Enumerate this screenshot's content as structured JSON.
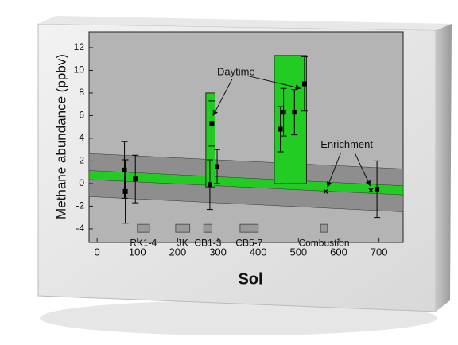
{
  "chart_data": {
    "type": "scatter",
    "x_label": "Sol",
    "y_label": "Methane abundance (ppbv)",
    "xlim": [
      -20,
      760
    ],
    "ylim": [
      -5.2,
      13.4
    ],
    "xticks": [
      0,
      100,
      200,
      300,
      400,
      500,
      600,
      700
    ],
    "yticks": [
      -4,
      -2,
      0,
      2,
      4,
      6,
      8,
      10,
      12
    ],
    "series": [
      {
        "color": "#000000",
        "x": [
          68,
          70,
          95,
          280,
          285,
          298,
          455,
          463,
          490,
          515,
          568,
          680,
          695
        ],
        "values": [
          1.2,
          -0.7,
          0.4,
          -0.1,
          5.3,
          1.5,
          4.8,
          6.3,
          6.3,
          8.8,
          -0.7,
          -0.6,
          -0.5
        ],
        "errors": [
          2.5,
          2.8,
          2.1,
          2.2,
          2.0,
          1.5,
          2.0,
          2.1,
          2.0,
          2.4,
          null,
          null,
          2.5
        ]
      }
    ],
    "background": {
      "x": [
        -20,
        760
      ],
      "values": [
        0.75,
        -0.6
      ],
      "band": 0.4,
      "spread": 1.9,
      "color": "#22cc22",
      "spread_color": "#8e8e8e"
    },
    "spikes": [
      {
        "x": [
          270,
          293
        ],
        "y": [
          -0.3,
          8
        ]
      },
      {
        "x": [
          440,
          520
        ],
        "y": [
          0,
          11.3
        ]
      }
    ],
    "annotations": [
      "Daytime",
      "Enrichment"
    ],
    "experiments": [
      {
        "label": "RK1-4",
        "x": [
          100,
          130
        ]
      },
      {
        "label": "JK",
        "x": [
          195,
          230
        ]
      },
      {
        "label": "CB1-3",
        "x": [
          265,
          285
        ]
      },
      {
        "label": "CB5-7",
        "x": [
          355,
          400
        ]
      },
      {
        "label": "Combustion",
        "x": [
          555,
          572
        ]
      }
    ],
    "experiment_y": [
      -4.3,
      -3.6
    ]
  }
}
